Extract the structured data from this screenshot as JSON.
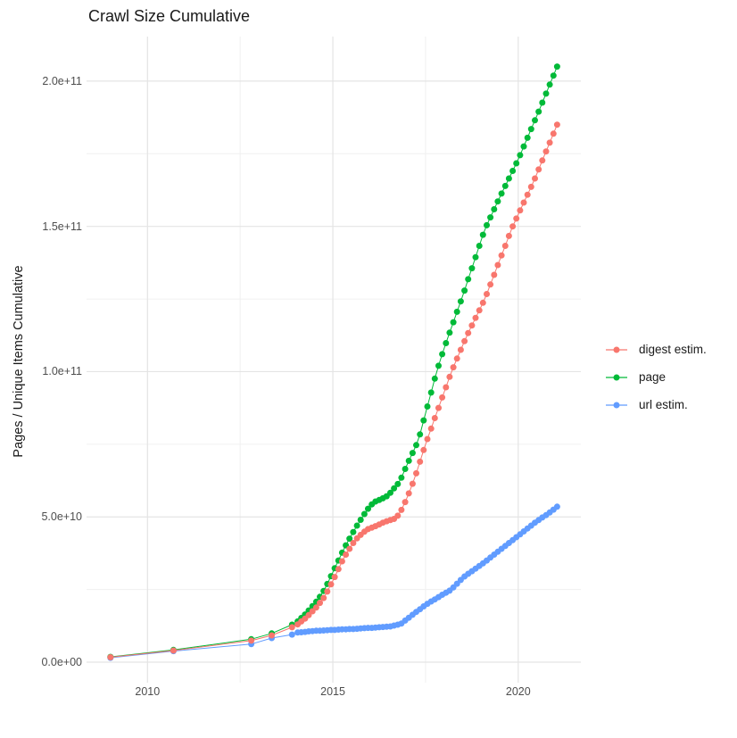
{
  "title": "Crawl Size Cumulative",
  "y_axis": {
    "label": "Pages / Unique Items Cumulative",
    "ticks": [
      "0.0e+00",
      "5.0e+10",
      "1.0e+11",
      "1.5e+11",
      "2.0e+11"
    ],
    "tick_values_e9": [
      0,
      50,
      100,
      150,
      200
    ],
    "minor_values_e9": [
      25,
      75,
      125,
      175
    ]
  },
  "x_axis": {
    "ticks": [
      "2010",
      "2015",
      "2020"
    ],
    "tick_values": [
      2010,
      2015,
      2020
    ],
    "minor_values": [
      2012.5,
      2017.5
    ]
  },
  "legend": {
    "position": "right",
    "items": [
      {
        "label": "digest estim.",
        "color": "#F8766D"
      },
      {
        "label": "page",
        "color": "#00BA38"
      },
      {
        "label": "url estim.",
        "color": "#619CFF"
      }
    ]
  },
  "colors": {
    "digest": "#F8766D",
    "page": "#00BA38",
    "url": "#619CFF",
    "grid_major": "#E4E4E4",
    "grid_minor": "#F0F0F0",
    "tick_text": "#4d4d4d",
    "title_text": "#1a1a1a"
  },
  "chart_data": {
    "type": "scatter",
    "style": "points connected by thin lines (ggplot geom_point + geom_line)",
    "title": "Crawl Size Cumulative",
    "xlabel": "",
    "ylabel": "Pages / Unique Items Cumulative",
    "x_unit": "calendar year (decimal)",
    "y_unit": "count; point values below are in billions (1e9)",
    "xlim": [
      2008.6,
      2021.5
    ],
    "ylim": [
      0,
      210000000000.0
    ],
    "grid": true,
    "legend_position": "right",
    "draw_order": [
      "url estim.",
      "page",
      "digest estim."
    ],
    "series": [
      {
        "name": "digest estim.",
        "color": "#F8766D",
        "points": [
          [
            2009.0,
            1.7
          ],
          [
            2010.7,
            4.0
          ],
          [
            2012.8,
            7.4
          ],
          [
            2013.35,
            9.2
          ],
          [
            2013.9,
            12.0
          ],
          [
            2014.05,
            13.0
          ],
          [
            2014.15,
            14.0
          ],
          [
            2014.25,
            15.0
          ],
          [
            2014.35,
            16.2
          ],
          [
            2014.45,
            17.5
          ],
          [
            2014.55,
            18.8
          ],
          [
            2014.65,
            20.4
          ],
          [
            2014.75,
            22.1
          ],
          [
            2014.85,
            24.3
          ],
          [
            2014.95,
            26.8
          ],
          [
            2015.05,
            29.3
          ],
          [
            2015.15,
            32.0
          ],
          [
            2015.25,
            34.7
          ],
          [
            2015.35,
            37.0
          ],
          [
            2015.45,
            39.0
          ],
          [
            2015.55,
            41.0
          ],
          [
            2015.65,
            42.6
          ],
          [
            2015.75,
            43.8
          ],
          [
            2015.85,
            44.9
          ],
          [
            2015.95,
            45.8
          ],
          [
            2016.05,
            46.3
          ],
          [
            2016.15,
            46.8
          ],
          [
            2016.25,
            47.4
          ],
          [
            2016.35,
            48.0
          ],
          [
            2016.45,
            48.5
          ],
          [
            2016.55,
            48.9
          ],
          [
            2016.65,
            49.3
          ],
          [
            2016.75,
            50.4
          ],
          [
            2016.85,
            52.4
          ],
          [
            2016.95,
            55.1
          ],
          [
            2017.05,
            58.1
          ],
          [
            2017.15,
            61.4
          ],
          [
            2017.25,
            65.0
          ],
          [
            2017.35,
            69.0
          ],
          [
            2017.45,
            73.0
          ],
          [
            2017.55,
            76.8
          ],
          [
            2017.65,
            80.4
          ],
          [
            2017.75,
            84.0
          ],
          [
            2017.85,
            87.5
          ],
          [
            2017.95,
            91.1
          ],
          [
            2018.05,
            94.6
          ],
          [
            2018.15,
            98.2
          ],
          [
            2018.25,
            101.5
          ],
          [
            2018.35,
            104.5
          ],
          [
            2018.45,
            107.5
          ],
          [
            2018.55,
            110.5
          ],
          [
            2018.65,
            113.3
          ],
          [
            2018.75,
            115.9
          ],
          [
            2018.85,
            118.5
          ],
          [
            2018.95,
            121.1
          ],
          [
            2019.05,
            123.7
          ],
          [
            2019.15,
            126.7
          ],
          [
            2019.25,
            130.0
          ],
          [
            2019.35,
            133.3
          ],
          [
            2019.45,
            136.7
          ],
          [
            2019.55,
            140.0
          ],
          [
            2019.65,
            143.3
          ],
          [
            2019.75,
            146.7
          ],
          [
            2019.85,
            150.0
          ],
          [
            2019.95,
            152.7
          ],
          [
            2020.05,
            155.5
          ],
          [
            2020.15,
            158.2
          ],
          [
            2020.25,
            160.9
          ],
          [
            2020.35,
            163.6
          ],
          [
            2020.45,
            166.5
          ],
          [
            2020.55,
            169.6
          ],
          [
            2020.65,
            172.7
          ],
          [
            2020.75,
            175.8
          ],
          [
            2020.85,
            178.8
          ],
          [
            2020.95,
            181.9
          ],
          [
            2021.05,
            185.0
          ]
        ]
      },
      {
        "name": "page",
        "color": "#00BA38",
        "points": [
          [
            2009.0,
            1.8
          ],
          [
            2010.7,
            4.2
          ],
          [
            2012.8,
            7.9
          ],
          [
            2013.35,
            9.9
          ],
          [
            2013.9,
            12.9
          ],
          [
            2014.05,
            14.0
          ],
          [
            2014.15,
            15.2
          ],
          [
            2014.25,
            16.4
          ],
          [
            2014.35,
            17.8
          ],
          [
            2014.45,
            19.3
          ],
          [
            2014.55,
            20.8
          ],
          [
            2014.65,
            22.5
          ],
          [
            2014.75,
            24.5
          ],
          [
            2014.85,
            26.9
          ],
          [
            2014.95,
            29.6
          ],
          [
            2015.05,
            32.3
          ],
          [
            2015.15,
            35.0
          ],
          [
            2015.25,
            37.7
          ],
          [
            2015.35,
            40.2
          ],
          [
            2015.45,
            42.5
          ],
          [
            2015.55,
            44.8
          ],
          [
            2015.65,
            47.0
          ],
          [
            2015.75,
            49.0
          ],
          [
            2015.85,
            51.0
          ],
          [
            2015.95,
            52.8
          ],
          [
            2016.05,
            54.3
          ],
          [
            2016.15,
            55.3
          ],
          [
            2016.25,
            55.8
          ],
          [
            2016.35,
            56.4
          ],
          [
            2016.45,
            57.1
          ],
          [
            2016.55,
            58.3
          ],
          [
            2016.65,
            59.8
          ],
          [
            2016.75,
            61.3
          ],
          [
            2016.85,
            63.5
          ],
          [
            2016.95,
            66.5
          ],
          [
            2017.05,
            69.3
          ],
          [
            2017.15,
            72.0
          ],
          [
            2017.25,
            74.7
          ],
          [
            2017.35,
            78.4
          ],
          [
            2017.45,
            83.2
          ],
          [
            2017.55,
            88.0
          ],
          [
            2017.65,
            92.8
          ],
          [
            2017.75,
            97.6
          ],
          [
            2017.85,
            102.0
          ],
          [
            2017.95,
            106.0
          ],
          [
            2018.05,
            109.8
          ],
          [
            2018.15,
            113.4
          ],
          [
            2018.25,
            117.0
          ],
          [
            2018.35,
            120.6
          ],
          [
            2018.45,
            124.2
          ],
          [
            2018.55,
            127.9
          ],
          [
            2018.65,
            131.8
          ],
          [
            2018.75,
            135.6
          ],
          [
            2018.85,
            139.4
          ],
          [
            2018.95,
            143.3
          ],
          [
            2019.05,
            147.1
          ],
          [
            2019.15,
            150.4
          ],
          [
            2019.25,
            153.1
          ],
          [
            2019.35,
            155.9
          ],
          [
            2019.45,
            158.6
          ],
          [
            2019.55,
            161.3
          ],
          [
            2019.65,
            163.9
          ],
          [
            2019.75,
            166.5
          ],
          [
            2019.85,
            169.1
          ],
          [
            2019.95,
            171.7
          ],
          [
            2020.05,
            174.5
          ],
          [
            2020.15,
            177.5
          ],
          [
            2020.25,
            180.5
          ],
          [
            2020.35,
            183.5
          ],
          [
            2020.45,
            186.5
          ],
          [
            2020.55,
            189.5
          ],
          [
            2020.65,
            192.6
          ],
          [
            2020.75,
            195.7
          ],
          [
            2020.85,
            198.8
          ],
          [
            2020.95,
            201.9
          ],
          [
            2021.05,
            205.0
          ]
        ]
      },
      {
        "name": "url estim.",
        "color": "#619CFF",
        "points": [
          [
            2009.0,
            1.5
          ],
          [
            2010.7,
            3.8
          ],
          [
            2012.8,
            6.2
          ],
          [
            2013.35,
            8.3
          ],
          [
            2013.9,
            9.5
          ],
          [
            2014.05,
            10.2
          ],
          [
            2014.15,
            10.3
          ],
          [
            2014.25,
            10.4
          ],
          [
            2014.35,
            10.6
          ],
          [
            2014.45,
            10.7
          ],
          [
            2014.55,
            10.8
          ],
          [
            2014.65,
            10.8
          ],
          [
            2014.75,
            10.9
          ],
          [
            2014.85,
            11.0
          ],
          [
            2014.95,
            11.1
          ],
          [
            2015.05,
            11.1
          ],
          [
            2015.15,
            11.2
          ],
          [
            2015.25,
            11.3
          ],
          [
            2015.35,
            11.3
          ],
          [
            2015.45,
            11.4
          ],
          [
            2015.55,
            11.4
          ],
          [
            2015.65,
            11.5
          ],
          [
            2015.75,
            11.6
          ],
          [
            2015.85,
            11.7
          ],
          [
            2015.95,
            11.8
          ],
          [
            2016.05,
            11.8
          ],
          [
            2016.15,
            11.9
          ],
          [
            2016.25,
            12.0
          ],
          [
            2016.35,
            12.1
          ],
          [
            2016.45,
            12.2
          ],
          [
            2016.55,
            12.3
          ],
          [
            2016.65,
            12.6
          ],
          [
            2016.75,
            12.9
          ],
          [
            2016.85,
            13.3
          ],
          [
            2016.95,
            14.3
          ],
          [
            2017.05,
            15.3
          ],
          [
            2017.15,
            16.3
          ],
          [
            2017.25,
            17.3
          ],
          [
            2017.35,
            18.2
          ],
          [
            2017.45,
            19.2
          ],
          [
            2017.55,
            20.1
          ],
          [
            2017.65,
            20.9
          ],
          [
            2017.75,
            21.6
          ],
          [
            2017.85,
            22.4
          ],
          [
            2017.95,
            23.2
          ],
          [
            2018.05,
            23.9
          ],
          [
            2018.15,
            24.6
          ],
          [
            2018.25,
            25.7
          ],
          [
            2018.35,
            27.0
          ],
          [
            2018.45,
            28.3
          ],
          [
            2018.55,
            29.5
          ],
          [
            2018.65,
            30.4
          ],
          [
            2018.75,
            31.3
          ],
          [
            2018.85,
            32.2
          ],
          [
            2018.95,
            33.1
          ],
          [
            2019.05,
            34.0
          ],
          [
            2019.15,
            35.0
          ],
          [
            2019.25,
            36.0
          ],
          [
            2019.35,
            37.0
          ],
          [
            2019.45,
            38.0
          ],
          [
            2019.55,
            39.0
          ],
          [
            2019.65,
            40.0
          ],
          [
            2019.75,
            41.0
          ],
          [
            2019.85,
            42.0
          ],
          [
            2019.95,
            43.0
          ],
          [
            2020.05,
            44.0
          ],
          [
            2020.15,
            45.0
          ],
          [
            2020.25,
            46.0
          ],
          [
            2020.35,
            47.0
          ],
          [
            2020.45,
            48.0
          ],
          [
            2020.55,
            48.9
          ],
          [
            2020.65,
            49.8
          ],
          [
            2020.75,
            50.6
          ],
          [
            2020.85,
            51.5
          ],
          [
            2020.95,
            52.5
          ],
          [
            2021.05,
            53.5
          ]
        ]
      }
    ]
  }
}
